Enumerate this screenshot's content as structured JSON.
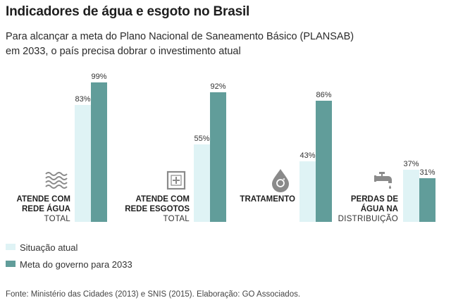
{
  "header": {
    "title": "Indicadores de água e esgoto no Brasil",
    "subtitle_line1": "Para alcançar a meta do Plano Nacional de Saneamento Básico (PLANSAB)",
    "subtitle_line2": "em 2033, o país precisa dobrar o investimento atual"
  },
  "colors": {
    "current": "#dff3f5",
    "goal": "#619d9a",
    "icon": "#8a8a8a",
    "text": "#222222"
  },
  "chart_data": {
    "type": "bar",
    "title": "Indicadores de água e esgoto no Brasil",
    "ylim": [
      0,
      100
    ],
    "value_suffix": "%",
    "categories": [
      {
        "label_lines": [
          "ATENDE COM",
          "REDE ÁGUA"
        ],
        "sublabel": "TOTAL",
        "icon": "water-waves-icon"
      },
      {
        "label_lines": [
          "ATENDE COM",
          "REDE ESGOTOS"
        ],
        "sublabel": "TOTAL",
        "icon": "sewage-box-icon"
      },
      {
        "label_lines": [
          "TRATAMENTO"
        ],
        "sublabel": "",
        "icon": "water-drop-recycle-icon"
      },
      {
        "label_lines": [
          "PERDAS DE",
          "ÁGUA NA"
        ],
        "sublabel": "DISTRIBUIÇÃO",
        "icon": "faucet-icon"
      }
    ],
    "series": [
      {
        "name": "Situação atual",
        "values": [
          83,
          55,
          43,
          37
        ]
      },
      {
        "name": "Meta do governo para 2033",
        "values": [
          99,
          92,
          86,
          31
        ]
      }
    ]
  },
  "legend": {
    "current_label": "Situação atual",
    "goal_label": "Meta do governo para 2033"
  },
  "footer": {
    "source": "Fonte: Ministério das Cidades (2013) e SNIS (2015). Elaboração: GO Associados."
  }
}
